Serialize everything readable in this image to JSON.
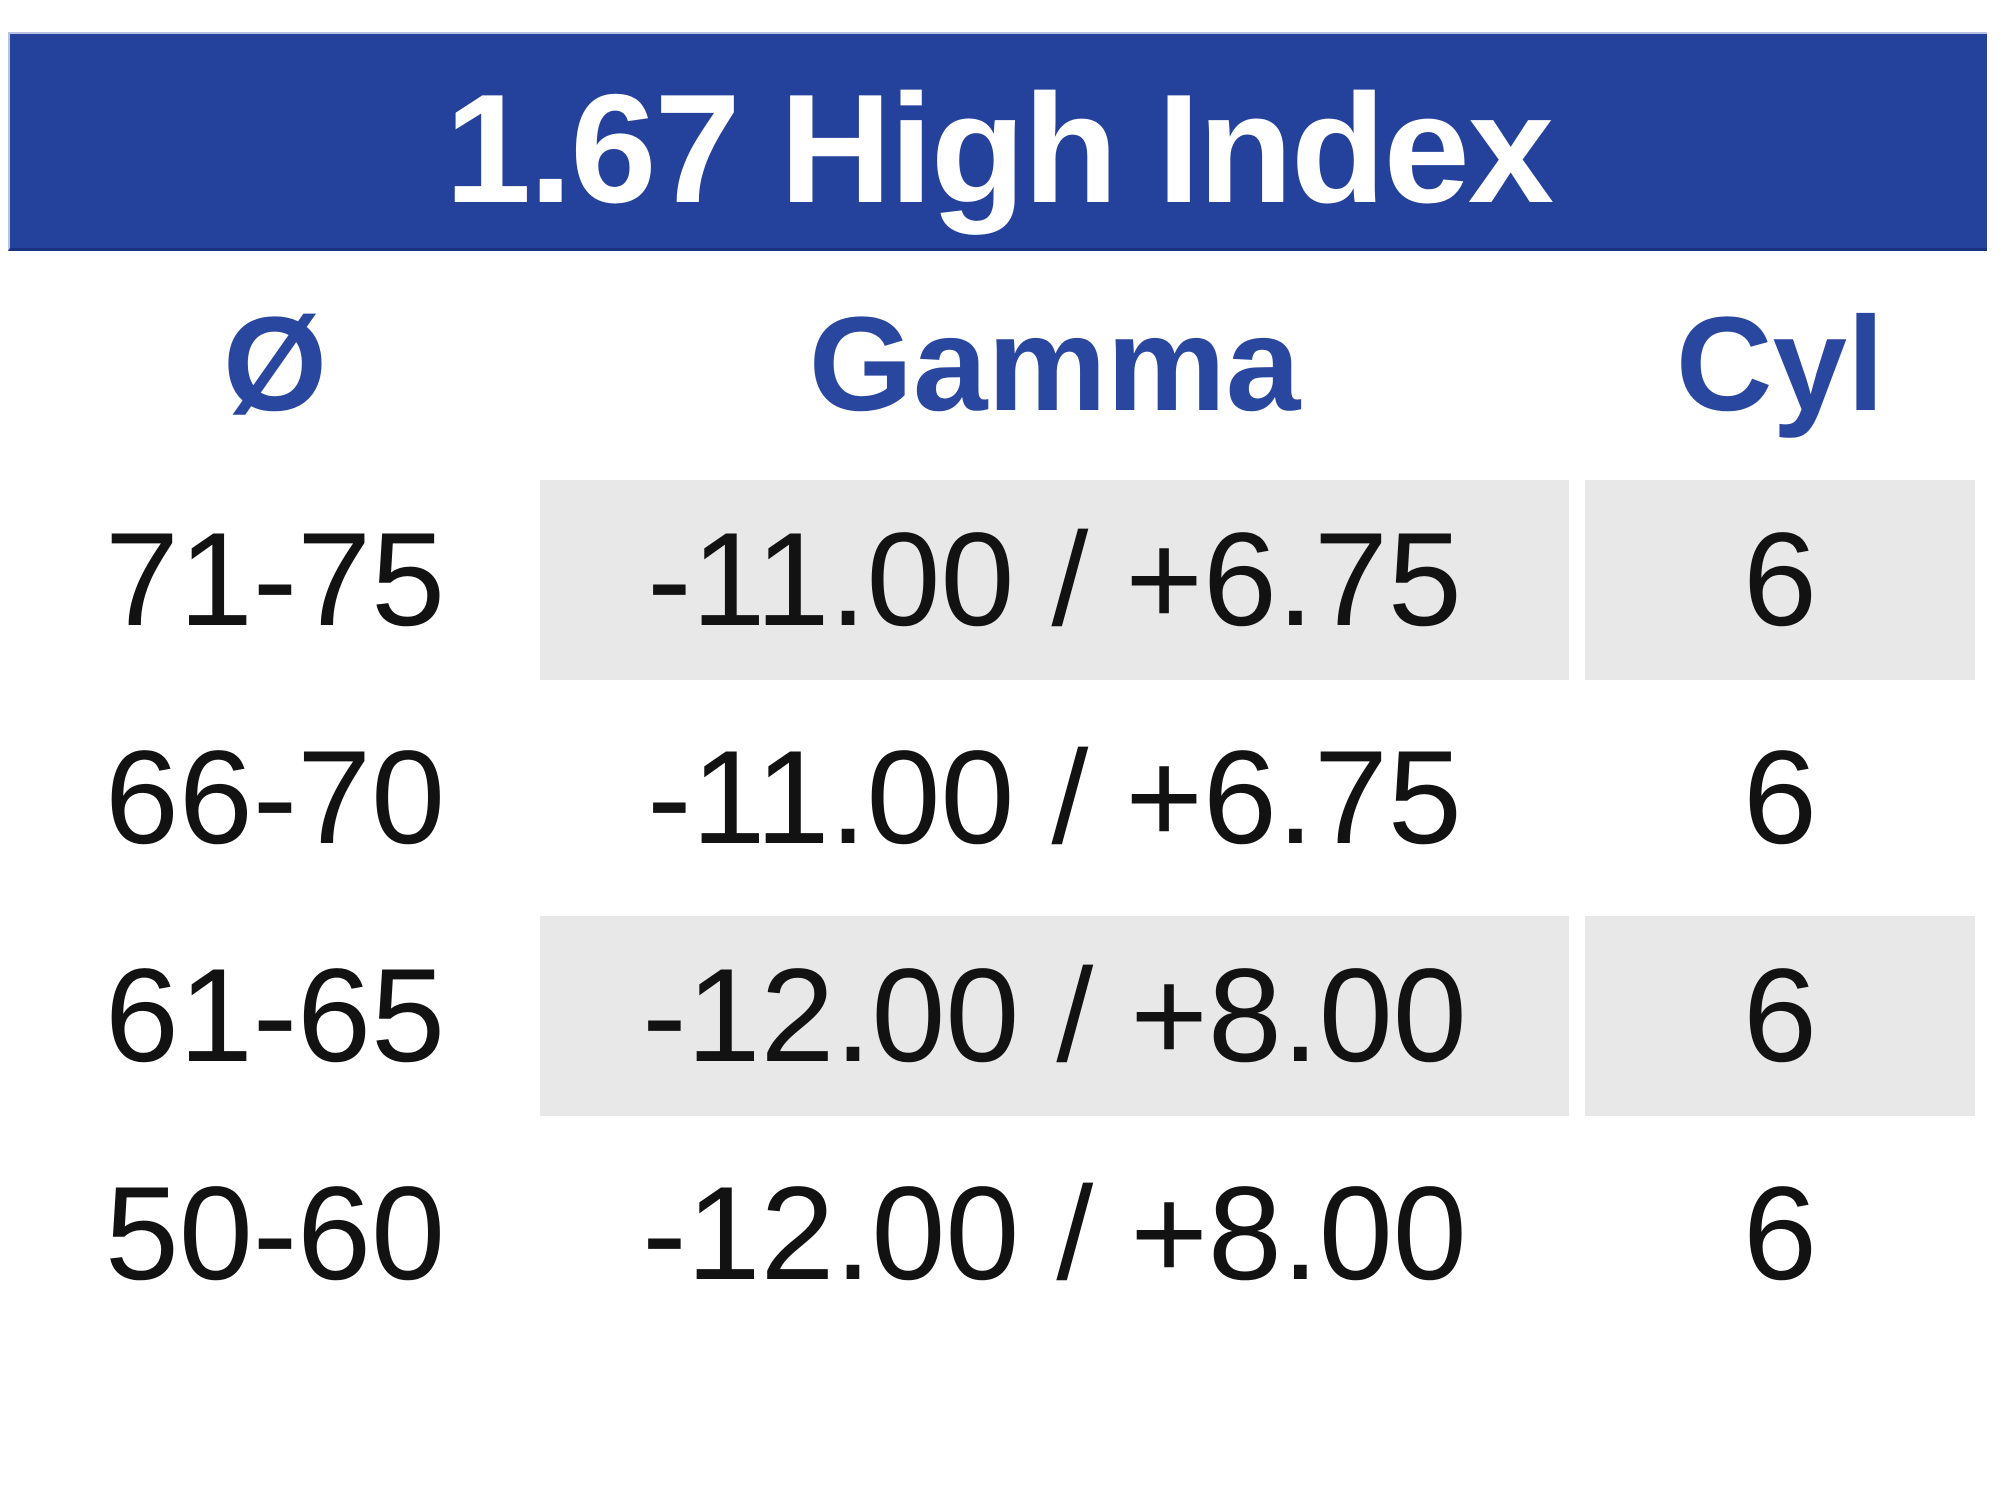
{
  "title": "1.67 High Index",
  "colors": {
    "header_bg": "#24419b",
    "header_text": "#ffffff",
    "column_header_text": "#2a47a0",
    "row_shaded_bg": "#e8e8e8",
    "body_text": "#121212"
  },
  "table": {
    "columns": [
      {
        "key": "diameter",
        "label": "Ø"
      },
      {
        "key": "gamma",
        "label": "Gamma"
      },
      {
        "key": "cyl",
        "label": "Cyl"
      }
    ],
    "rows": [
      {
        "diameter": "71-75",
        "gamma": "-11.00 / +6.75",
        "cyl": "6",
        "shaded": true
      },
      {
        "diameter": "66-70",
        "gamma": "-11.00 / +6.75",
        "cyl": "6",
        "shaded": false
      },
      {
        "diameter": "61-65",
        "gamma": "-12.00 / +8.00",
        "cyl": "6",
        "shaded": true
      },
      {
        "diameter": "50-60",
        "gamma": "-12.00 / +8.00",
        "cyl": "6",
        "shaded": false
      }
    ]
  }
}
